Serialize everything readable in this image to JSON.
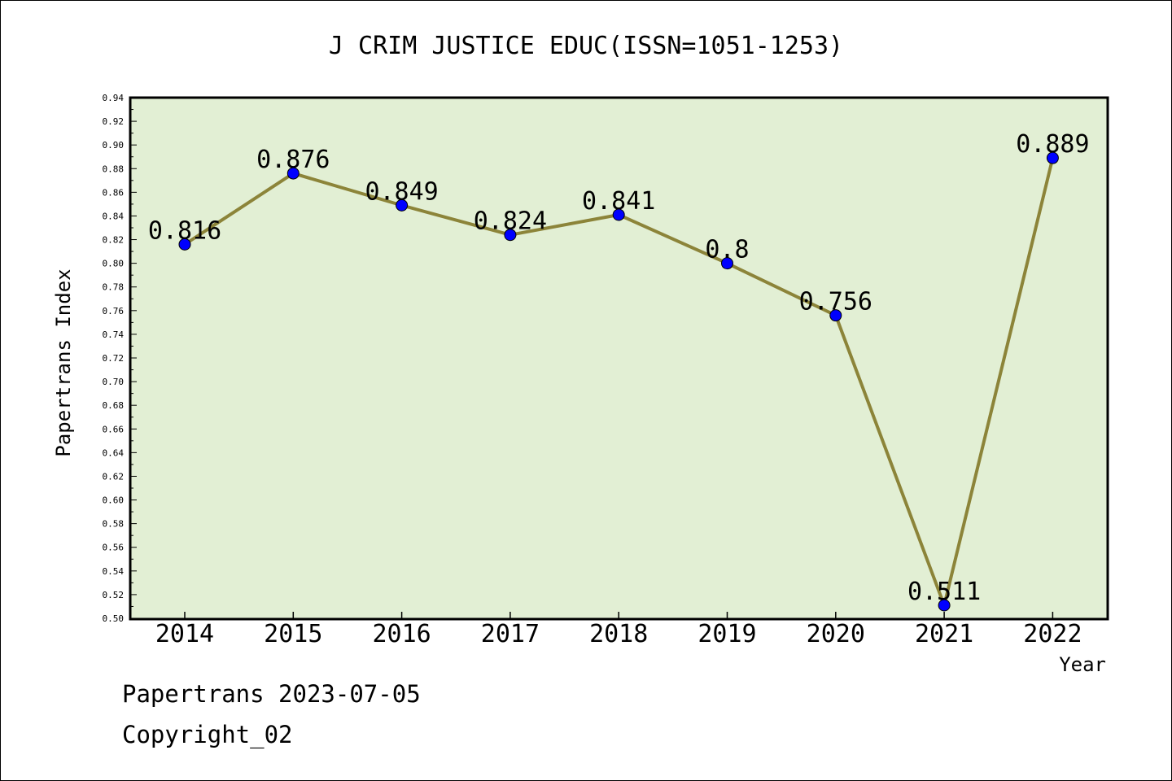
{
  "chart_data": {
    "type": "line",
    "title": "J CRIM JUSTICE EDUC(ISSN=1051-1253)",
    "xlabel": "Year",
    "ylabel": "Papertrans Index",
    "categories": [
      "2014",
      "2015",
      "2016",
      "2017",
      "2018",
      "2019",
      "2020",
      "2021",
      "2022"
    ],
    "values": [
      0.816,
      0.876,
      0.849,
      0.824,
      0.841,
      0.8,
      0.756,
      0.511,
      0.889
    ],
    "data_labels": [
      "0.816",
      "0.876",
      "0.849",
      "0.824",
      "0.841",
      "0.8",
      "0.756",
      "0.511",
      "0.889"
    ],
    "ylim": [
      0.5,
      0.94
    ],
    "yticks": [
      "0.50",
      "0.52",
      "0.54",
      "0.56",
      "0.58",
      "0.60",
      "0.62",
      "0.64",
      "0.66",
      "0.68",
      "0.70",
      "0.72",
      "0.74",
      "0.76",
      "0.78",
      "0.80",
      "0.82",
      "0.84",
      "0.86",
      "0.88",
      "0.90",
      "0.92",
      "0.94"
    ],
    "grid": false,
    "colors": {
      "plot_bg": "#e2efd4",
      "line": "#8c8439",
      "marker": "#0000ff"
    }
  },
  "footer": {
    "line1": "Papertrans 2023-07-05",
    "line2": "Copyright_02"
  }
}
